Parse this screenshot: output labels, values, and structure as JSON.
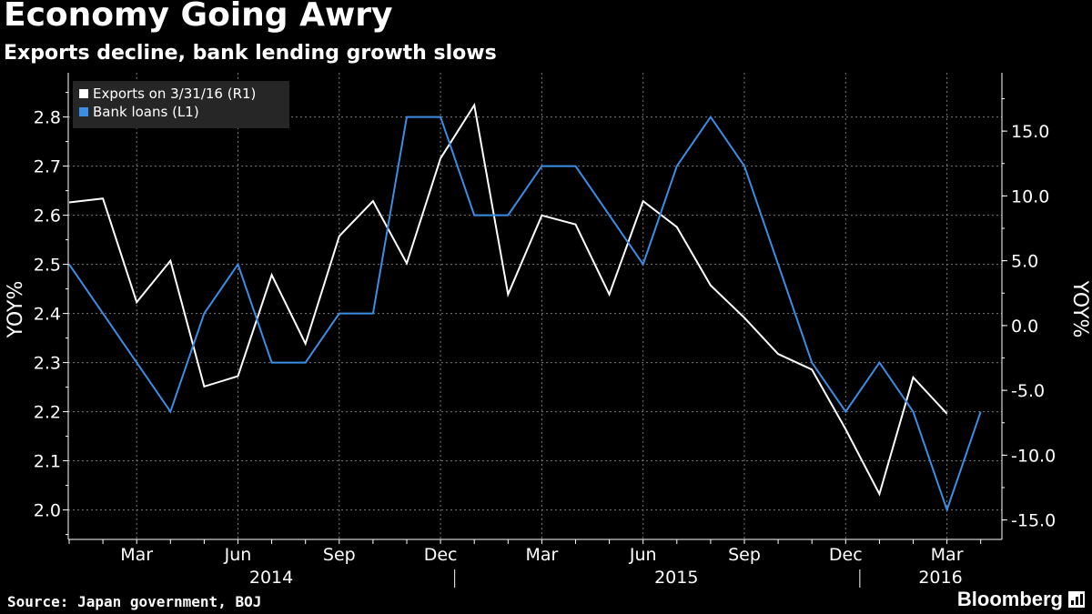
{
  "header": {
    "title": "Economy Going Awry",
    "subtitle": "Exports decline, bank lending growth slows"
  },
  "footer": {
    "source": "Source: Japan government, BOJ",
    "brand": "Bloomberg"
  },
  "colors": {
    "background": "#000000",
    "exports_line": "#ffffff",
    "loans_line": "#3a8ee6",
    "grid": "#7a7a7a",
    "legend_box": "#262626"
  },
  "chart_data": {
    "type": "line",
    "grid": true,
    "legend_placement": "top-left",
    "x": [
      "2014-01",
      "2014-02",
      "2014-03",
      "2014-04",
      "2014-05",
      "2014-06",
      "2014-07",
      "2014-08",
      "2014-09",
      "2014-10",
      "2014-11",
      "2014-12",
      "2015-01",
      "2015-02",
      "2015-03",
      "2015-04",
      "2015-05",
      "2015-06",
      "2015-07",
      "2015-08",
      "2015-09",
      "2015-10",
      "2015-11",
      "2015-12",
      "2016-01",
      "2016-02",
      "2016-03",
      "2016-04"
    ],
    "x_ticks": {
      "months": [
        "Mar",
        "Jun",
        "Sep",
        "Dec",
        "Mar",
        "Jun",
        "Sep",
        "Dec",
        "Mar"
      ],
      "years": [
        "2014",
        "2015",
        "2016"
      ]
    },
    "y_left": {
      "label": "YOY%",
      "lim": [
        1.94,
        2.89
      ],
      "ticks": [
        "2.0",
        "2.1",
        "2.2",
        "2.3",
        "2.4",
        "2.5",
        "2.6",
        "2.7",
        "2.8"
      ]
    },
    "y_right": {
      "label": "YOY%",
      "lim": [
        -16.5,
        19.5
      ],
      "ticks": [
        "-15.0",
        "-10.0",
        "-5.0",
        "0.0",
        "5.0",
        "10.0",
        "15.0"
      ]
    },
    "series": [
      {
        "name": "Exports on 3/31/16 (R1)",
        "axis": "right",
        "color": "#ffffff",
        "values": [
          9.5,
          9.8,
          1.8,
          5.0,
          -4.7,
          -3.9,
          3.9,
          -1.4,
          6.9,
          9.6,
          4.8,
          12.9,
          17.0,
          2.4,
          8.5,
          7.8,
          2.4,
          9.6,
          7.6,
          3.1,
          0.6,
          -2.2,
          -3.4,
          -8.0,
          -13.0,
          -4.0,
          -6.8,
          null
        ]
      },
      {
        "name": "Bank loans (L1)",
        "axis": "left",
        "color": "#3a8ee6",
        "values": [
          2.5,
          2.4,
          2.3,
          2.2,
          2.4,
          2.5,
          2.3,
          2.3,
          2.4,
          2.4,
          2.8,
          2.8,
          2.6,
          2.6,
          2.7,
          2.7,
          2.6,
          2.5,
          2.7,
          2.8,
          2.7,
          2.5,
          2.3,
          2.2,
          2.3,
          2.2,
          2.0,
          2.2
        ]
      }
    ]
  }
}
